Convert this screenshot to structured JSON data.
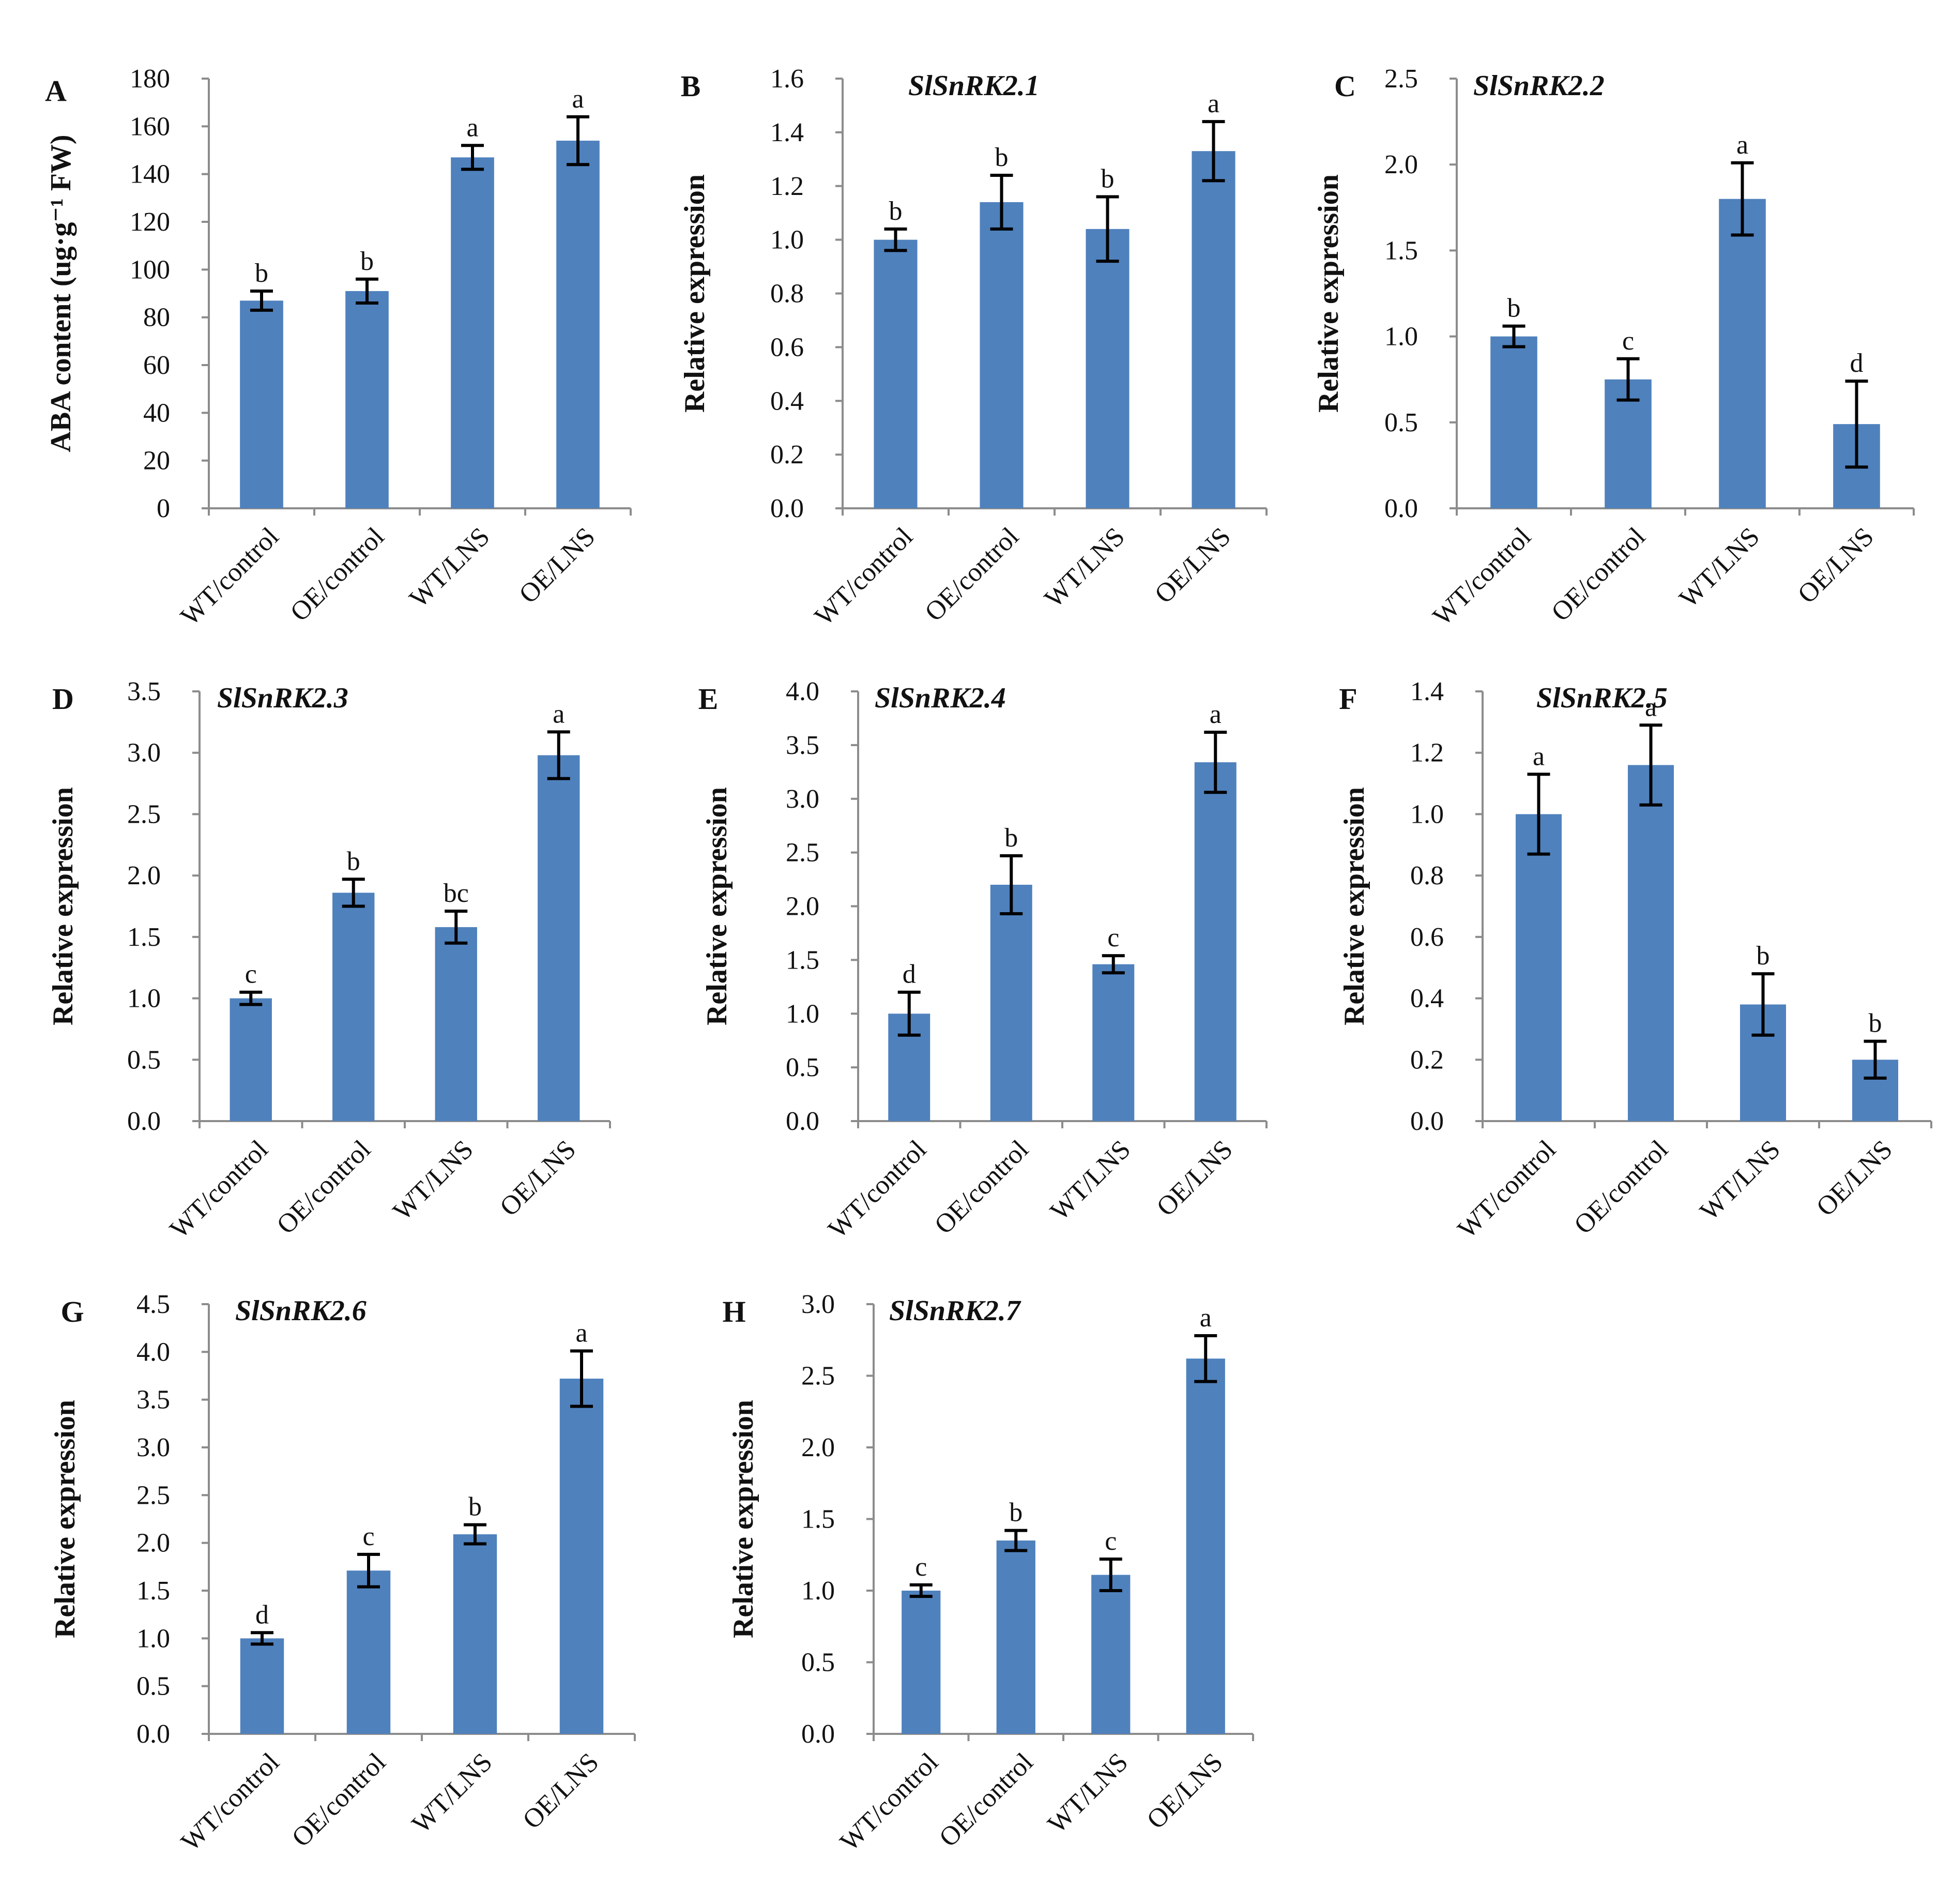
{
  "figure": {
    "bar_color": "#4f81bd",
    "axis_color": "#8c8c8c"
  },
  "chart_data": [
    {
      "type": "bar",
      "panel": "A",
      "title": "",
      "xlabel": "",
      "ylabel": "ABA content (ug·g⁻¹ FW)",
      "categories": [
        "WT/control",
        "OE/control",
        "WT/LNS",
        "OE/LNS"
      ],
      "values": [
        87,
        91,
        147,
        154
      ],
      "errors": [
        4,
        5,
        5,
        10
      ],
      "significance": [
        "b",
        "b",
        "a",
        "a"
      ],
      "ylim": [
        0,
        180
      ],
      "yticks": [
        "0",
        "20",
        "40",
        "60",
        "80",
        "100",
        "120",
        "140",
        "160",
        "180"
      ]
    },
    {
      "type": "bar",
      "panel": "B",
      "title": "SlSnRK2.1",
      "xlabel": "",
      "ylabel": "Relative expression",
      "categories": [
        "WT/control",
        "OE/control",
        "WT/LNS",
        "OE/LNS"
      ],
      "values": [
        1.0,
        1.14,
        1.04,
        1.33
      ],
      "errors": [
        0.04,
        0.1,
        0.12,
        0.11
      ],
      "significance": [
        "b",
        "b",
        "b",
        "a"
      ],
      "ylim": [
        0,
        1.6
      ],
      "yticks": [
        "0.0",
        "0.2",
        "0.4",
        "0.6",
        "0.8",
        "1.0",
        "1.2",
        "1.4",
        "1.6"
      ]
    },
    {
      "type": "bar",
      "panel": "C",
      "title": "SlSnRK2.2",
      "xlabel": "",
      "ylabel": "Relative expression",
      "categories": [
        "WT/control",
        "OE/control",
        "WT/LNS",
        "OE/LNS"
      ],
      "values": [
        1.0,
        0.75,
        1.8,
        0.49
      ],
      "errors": [
        0.06,
        0.12,
        0.21,
        0.25
      ],
      "significance": [
        "b",
        "c",
        "a",
        "d"
      ],
      "ylim": [
        0,
        2.5
      ],
      "yticks": [
        "0.0",
        "0.5",
        "1.0",
        "1.5",
        "2.0",
        "2.5"
      ]
    },
    {
      "type": "bar",
      "panel": "D",
      "title": "SlSnRK2.3",
      "xlabel": "",
      "ylabel": "Relative expression",
      "categories": [
        "WT/control",
        "OE/control",
        "WT/LNS",
        "OE/LNS"
      ],
      "values": [
        1.0,
        1.86,
        1.58,
        2.98
      ],
      "errors": [
        0.05,
        0.11,
        0.13,
        0.19
      ],
      "significance": [
        "c",
        "b",
        "bc",
        "a"
      ],
      "ylim": [
        0,
        3.5
      ],
      "yticks": [
        "0.0",
        "0.5",
        "1.0",
        "1.5",
        "2.0",
        "2.5",
        "3.0",
        "3.5"
      ]
    },
    {
      "type": "bar",
      "panel": "E",
      "title": "SlSnRK2.4",
      "xlabel": "",
      "ylabel": "Relative expression",
      "categories": [
        "WT/control",
        "OE/control",
        "WT/LNS",
        "OE/LNS"
      ],
      "values": [
        1.0,
        2.2,
        1.46,
        3.34
      ],
      "errors": [
        0.2,
        0.27,
        0.08,
        0.28
      ],
      "significance": [
        "d",
        "b",
        "c",
        "a"
      ],
      "ylim": [
        0,
        4.0
      ],
      "yticks": [
        "0.0",
        "0.5",
        "1.0",
        "1.5",
        "2.0",
        "2.5",
        "3.0",
        "3.5",
        "4.0"
      ]
    },
    {
      "type": "bar",
      "panel": "F",
      "title": "SlSnRK2.5",
      "xlabel": "",
      "ylabel": "Relative expression",
      "categories": [
        "WT/control",
        "OE/control",
        "WT/LNS",
        "OE/LNS"
      ],
      "values": [
        1.0,
        1.16,
        0.38,
        0.2
      ],
      "errors": [
        0.13,
        0.13,
        0.1,
        0.06
      ],
      "significance": [
        "a",
        "a",
        "b",
        "b"
      ],
      "ylim": [
        0,
        1.4
      ],
      "yticks": [
        "0.0",
        "0.2",
        "0.4",
        "0.6",
        "0.8",
        "1.0",
        "1.2",
        "1.4"
      ]
    },
    {
      "type": "bar",
      "panel": "G",
      "title": "SlSnRK2.6",
      "xlabel": "",
      "ylabel": "Relative expression",
      "categories": [
        "WT/control",
        "OE/control",
        "WT/LNS",
        "OE/LNS"
      ],
      "values": [
        1.0,
        1.71,
        2.09,
        3.72
      ],
      "errors": [
        0.06,
        0.17,
        0.1,
        0.29
      ],
      "significance": [
        "d",
        "c",
        "b",
        "a"
      ],
      "ylim": [
        0,
        4.5
      ],
      "yticks": [
        "0.0",
        "0.5",
        "1.0",
        "1.5",
        "2.0",
        "2.5",
        "3.0",
        "3.5",
        "4.0",
        "4.5"
      ]
    },
    {
      "type": "bar",
      "panel": "H",
      "title": "SlSnRK2.7",
      "xlabel": "",
      "ylabel": "Relative expression",
      "categories": [
        "WT/control",
        "OE/control",
        "WT/LNS",
        "OE/LNS"
      ],
      "values": [
        1.0,
        1.35,
        1.11,
        2.62
      ],
      "errors": [
        0.04,
        0.07,
        0.11,
        0.16
      ],
      "significance": [
        "c",
        "b",
        "c",
        "a"
      ],
      "ylim": [
        0,
        3.0
      ],
      "yticks": [
        "0.0",
        "0.5",
        "1.0",
        "1.5",
        "2.0",
        "2.5",
        "3.0"
      ]
    }
  ]
}
